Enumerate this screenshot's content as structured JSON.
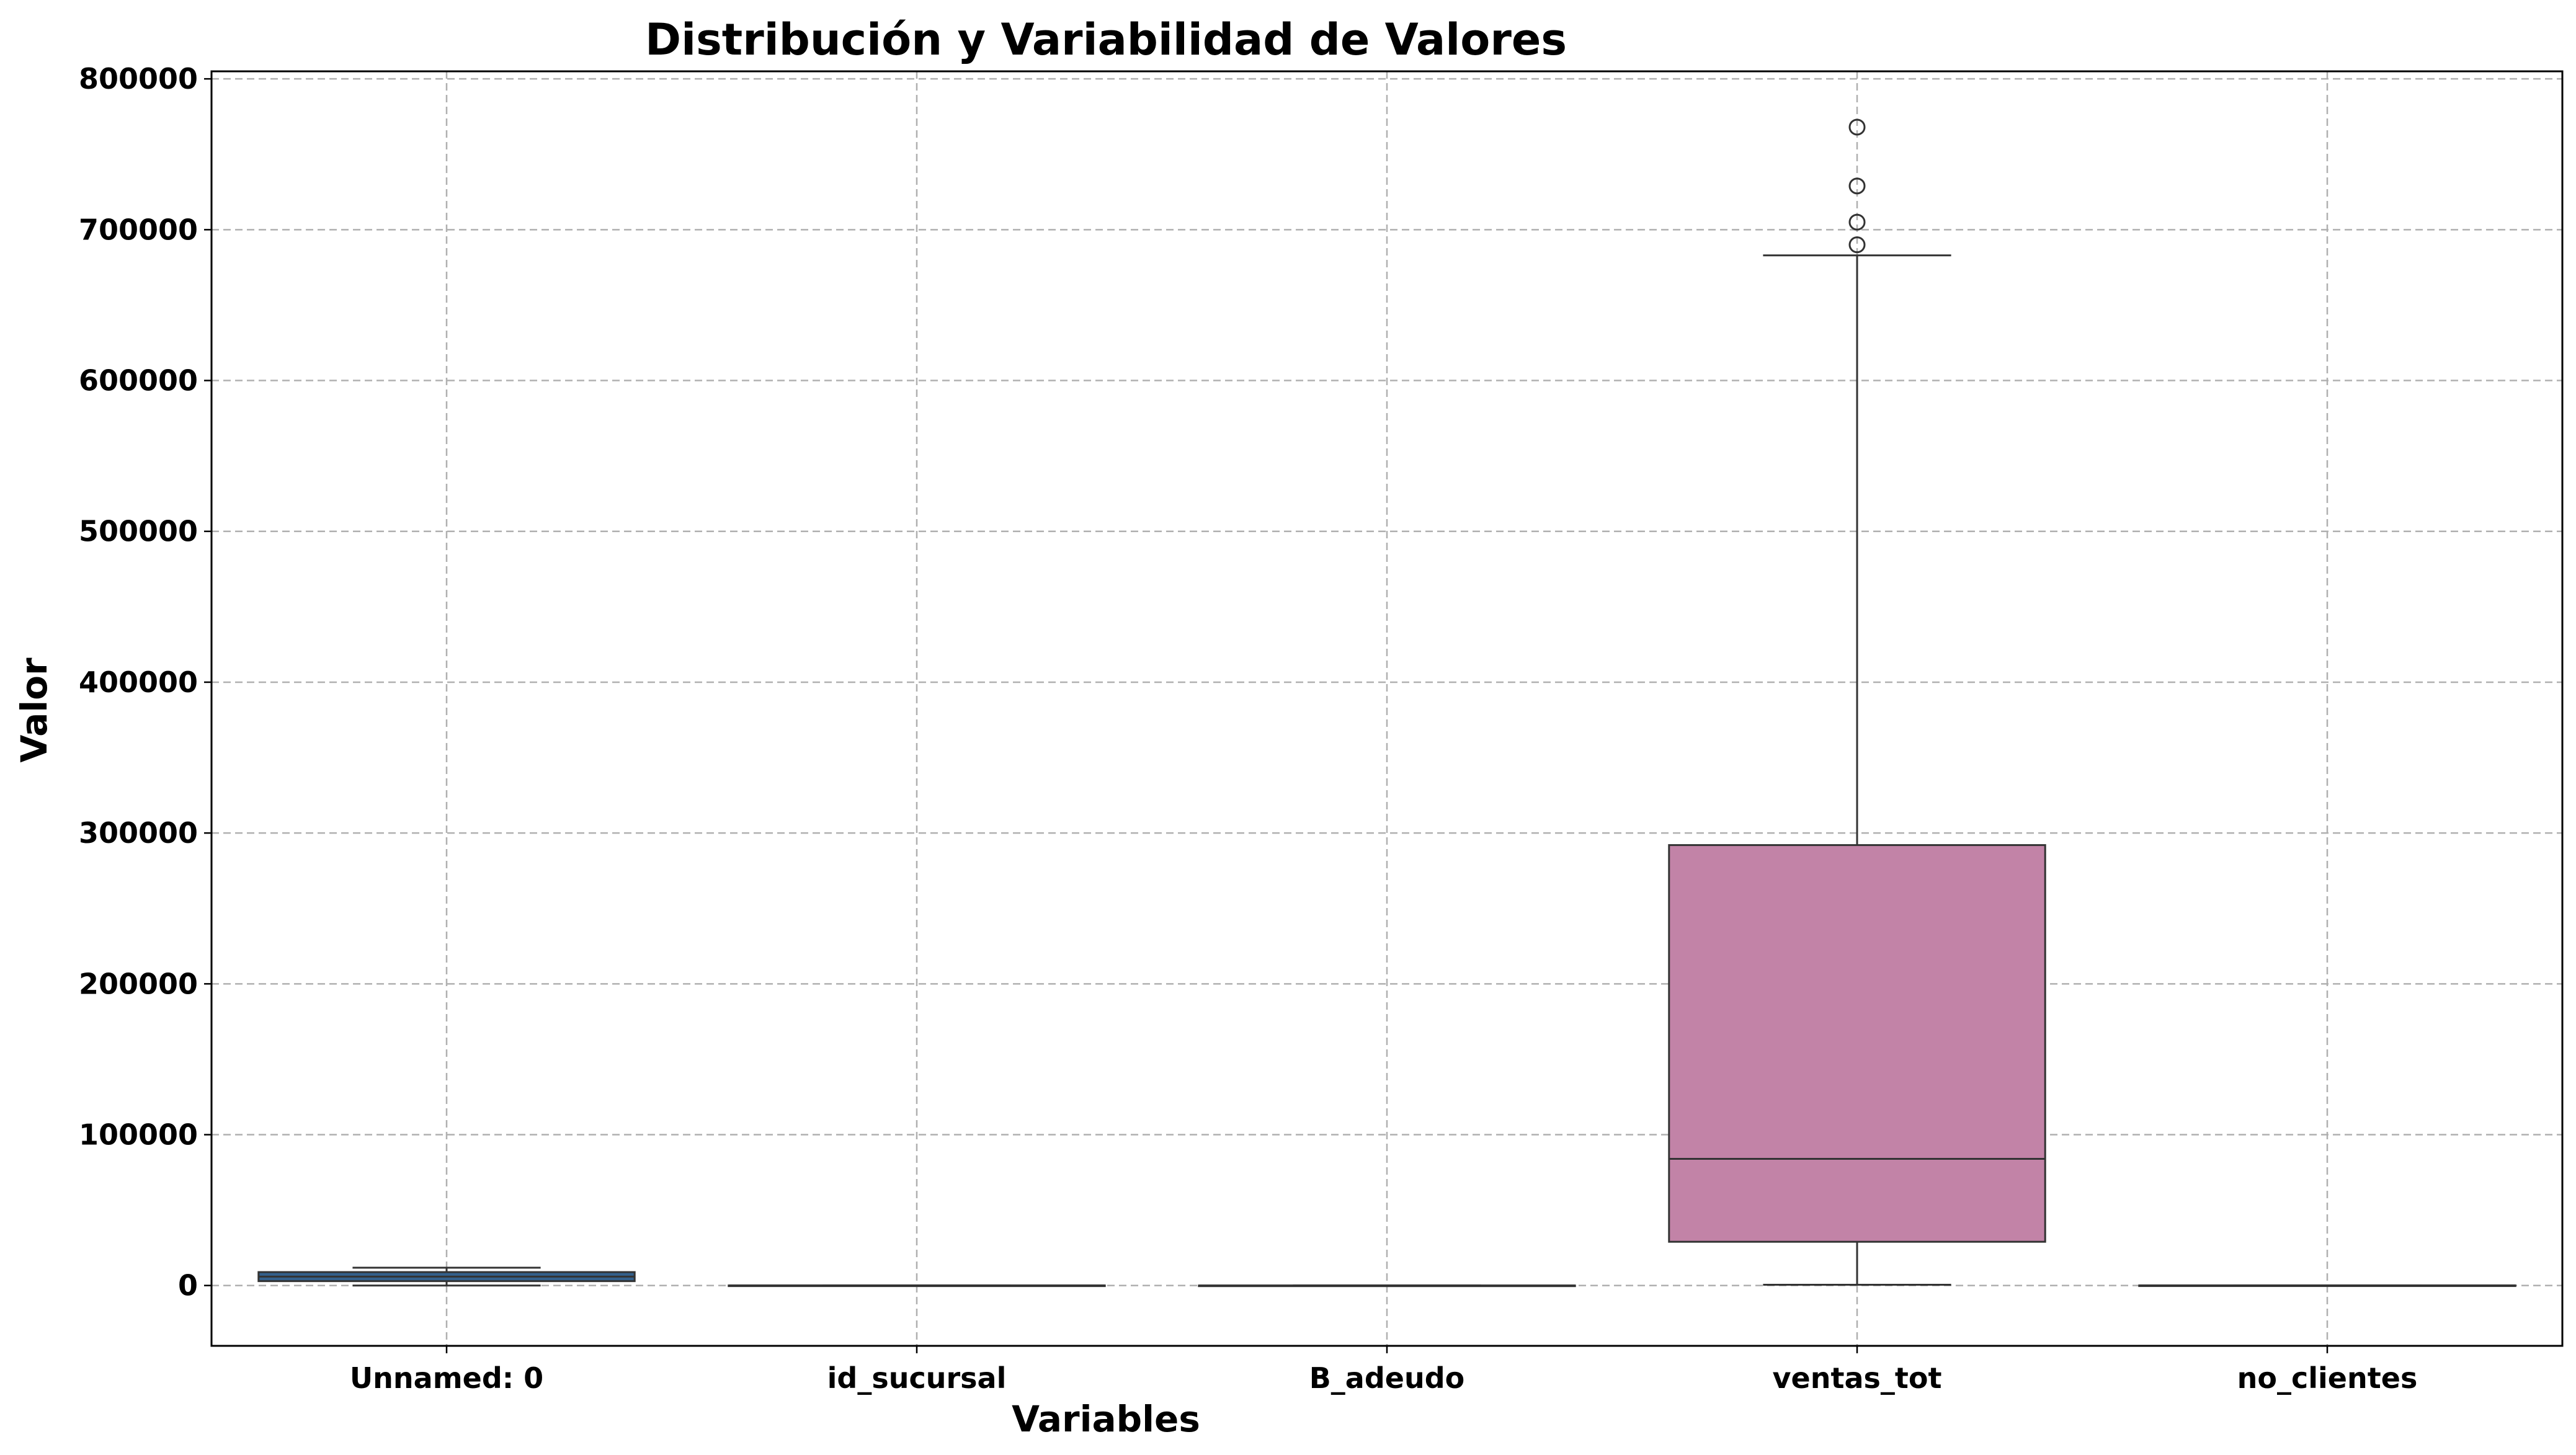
{
  "chart_data": {
    "type": "box",
    "title": "Distribución y Variabilidad de Valores",
    "xlabel": "Variables",
    "ylabel": "Valor",
    "ylim": [
      -40000,
      805000
    ],
    "yticks": [
      0,
      100000,
      200000,
      300000,
      400000,
      500000,
      600000,
      700000,
      800000
    ],
    "ytick_labels": [
      "0",
      "100000",
      "200000",
      "300000",
      "400000",
      "500000",
      "600000",
      "700000",
      "800000"
    ],
    "grid": true,
    "categories": [
      "Unnamed: 0",
      "id_sucursal",
      "B_adeudo",
      "ventas_tot",
      "no_clientes"
    ],
    "boxes": [
      {
        "name": "Unnamed: 0",
        "whisker_low": 0,
        "q1": 2900,
        "median": 5900,
        "q3": 8900,
        "whisker_high": 11800,
        "outliers": [],
        "color": "#33608c"
      },
      {
        "name": "id_sucursal",
        "whisker_low": 0,
        "q1": 10,
        "median": 20,
        "q3": 30,
        "whisker_high": 40,
        "outliers": [],
        "color": "#4f4f8a"
      },
      {
        "name": "B_adeudo",
        "whisker_low": 0,
        "q1": 0,
        "median": 0,
        "q3": 1,
        "whisker_high": 1,
        "outliers": [],
        "color": "#8a5a8f"
      },
      {
        "name": "ventas_tot",
        "whisker_low": 500,
        "q1": 29000,
        "median": 84000,
        "q3": 292000,
        "whisker_high": 683000,
        "outliers": [
          690000,
          705000,
          729000,
          768000
        ],
        "color": "#c283a7"
      },
      {
        "name": "no_clientes",
        "whisker_low": 0,
        "q1": 20,
        "median": 40,
        "q3": 60,
        "whisker_high": 80,
        "outliers": [],
        "color": "#e0a3b4"
      }
    ]
  }
}
